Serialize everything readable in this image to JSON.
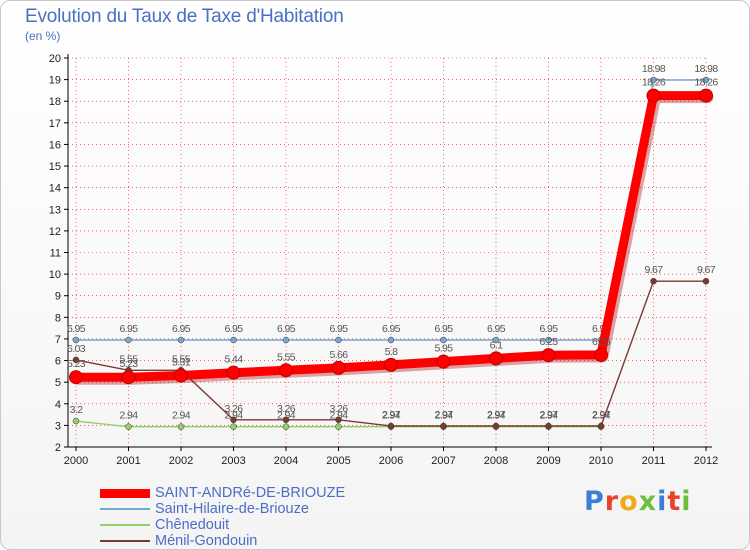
{
  "page": {
    "title": "Evolution du Taux de Taxe d'Habitation",
    "subtitle": "(en %)",
    "brand": "Proxiti"
  },
  "colors": {
    "axis": "#000000",
    "grid": "#ff0000",
    "tick_text": "#222222",
    "label_text": "#555555",
    "background": "#ffffff",
    "brand_letters": [
      "#3a7fd5",
      "#e8432d",
      "#f2a91c",
      "#6cbf3b",
      "#3a7fd5",
      "#e8432d",
      "#6cbf3b"
    ]
  },
  "chart_data": {
    "type": "line",
    "title": "Evolution du Taux de Taxe d'Habitation",
    "ylabel": "(en %)",
    "xlabel": "",
    "x": [
      "2000",
      "2001",
      "2002",
      "2003",
      "2004",
      "2005",
      "2006",
      "2007",
      "2008",
      "2009",
      "2010",
      "2011",
      "2012"
    ],
    "ylim": [
      2,
      20
    ],
    "yticks": [
      2,
      3,
      4,
      5,
      6,
      7,
      8,
      9,
      10,
      11,
      12,
      13,
      14,
      15,
      16,
      17,
      18,
      19,
      20
    ],
    "legend_position": "bottom-left",
    "series": [
      {
        "name": "SAINT-ANDRé-DE-BRIOUZE",
        "color": "#ff0000",
        "emphasis": "thick",
        "values": [
          5.23,
          5.23,
          5.31,
          5.44,
          5.55,
          5.66,
          5.8,
          5.95,
          6.1,
          6.25,
          6.26,
          18.26,
          18.26
        ],
        "labels": [
          "5.23",
          "5.23",
          "5.31",
          "5.44",
          "5.55",
          "5.66",
          "5.8",
          "5.95",
          "6.1",
          "6.25",
          "6.26",
          "18.26",
          "18.26"
        ]
      },
      {
        "name": "Saint-Hilaire-de-Briouze",
        "color": "#7aa7cf",
        "emphasis": "normal",
        "values": [
          6.95,
          6.95,
          6.95,
          6.95,
          6.95,
          6.95,
          6.95,
          6.95,
          6.95,
          6.95,
          6.95,
          18.98,
          18.98
        ],
        "labels": [
          "6.95",
          "6.95",
          "6.95",
          "6.95",
          "6.95",
          "6.95",
          "6.95",
          "6.95",
          "6.95",
          "6.95",
          "6.95",
          "18.98",
          "18.98"
        ]
      },
      {
        "name": "Chênedouit",
        "color": "#8fd16a",
        "emphasis": "normal",
        "values": [
          3.2,
          2.94,
          2.94,
          2.94,
          2.94,
          2.94,
          2.94,
          2.94,
          2.94,
          2.94,
          2.94,
          null,
          null
        ],
        "labels": [
          "3.2",
          "2.94",
          "2.94",
          "2.94",
          "2.94",
          "2.94",
          "2.94",
          "2.94",
          "2.94",
          "2.94",
          "2.94",
          "",
          ""
        ]
      },
      {
        "name": "Ménil-Gondouin",
        "color": "#7a3b2e",
        "emphasis": "normal",
        "values": [
          6.03,
          5.55,
          5.55,
          3.26,
          3.26,
          3.26,
          2.97,
          2.97,
          2.97,
          2.97,
          2.97,
          9.67,
          9.67
        ],
        "labels": [
          "6.03",
          "5.55",
          "5.55",
          "3.26",
          "3.26",
          "3.26",
          "2.97",
          "2.97",
          "2.97",
          "2.97",
          "2.97",
          "9.67",
          "9.67"
        ]
      }
    ]
  }
}
